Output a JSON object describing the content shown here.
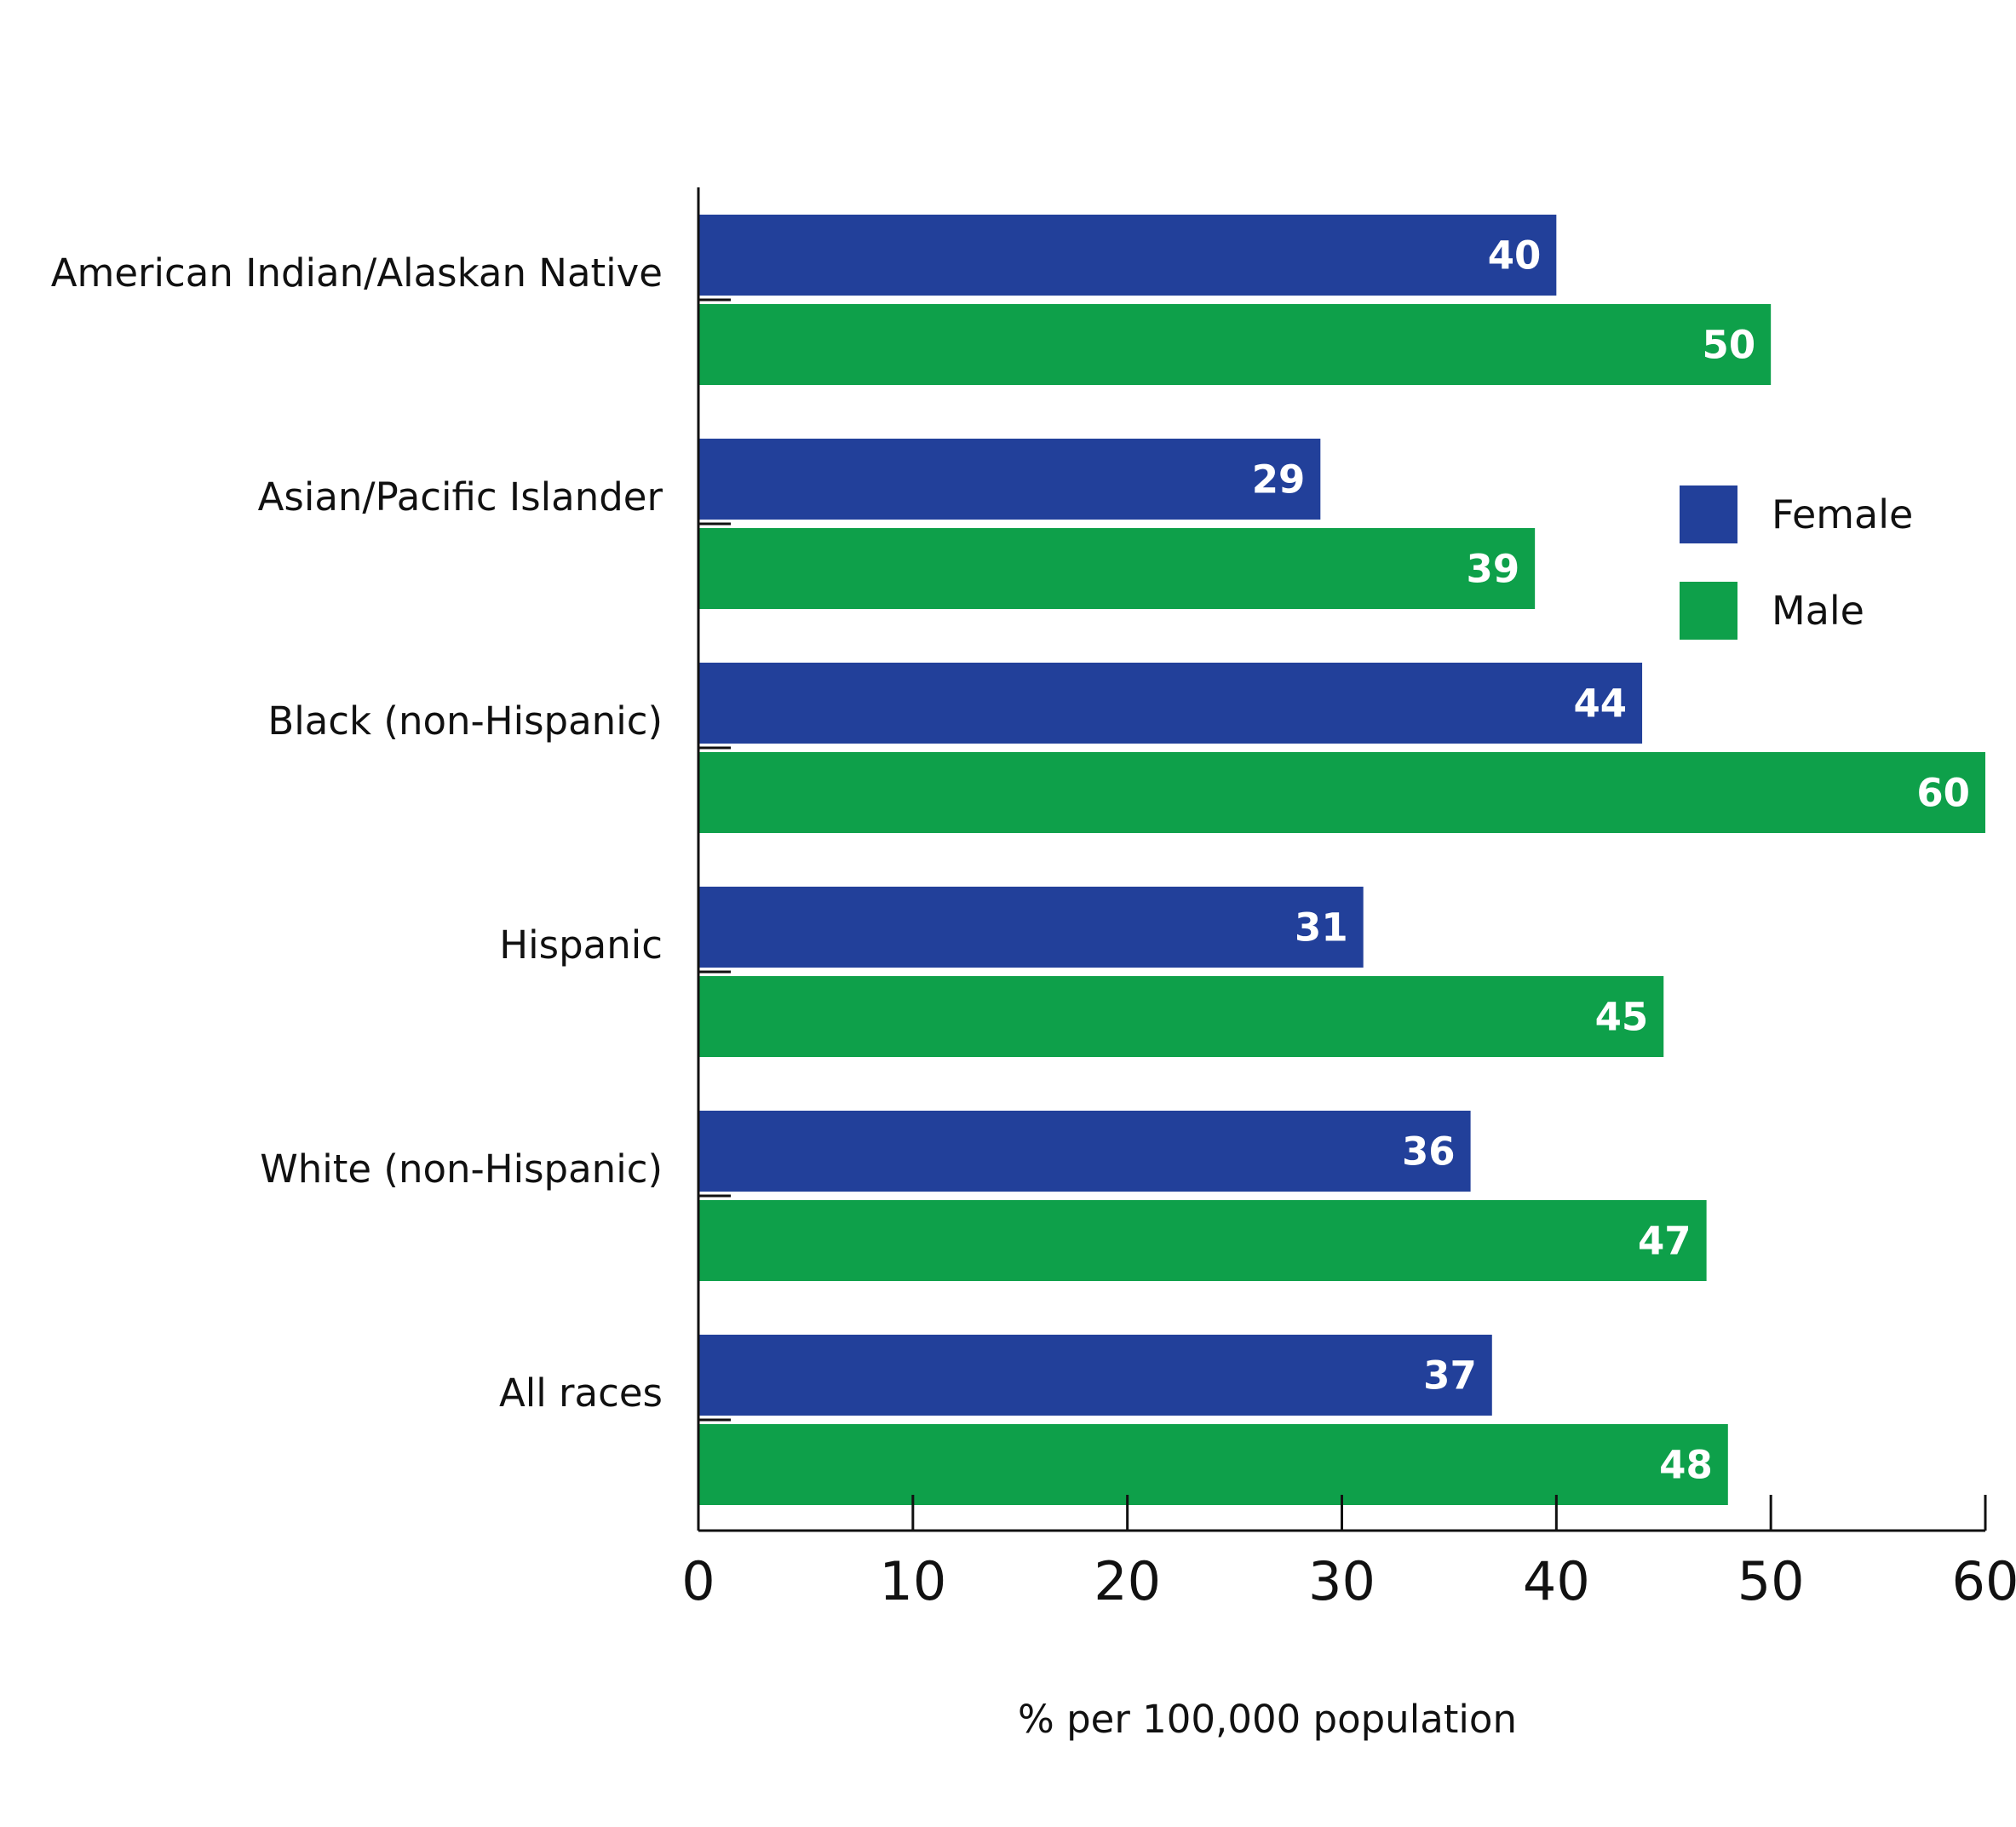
{
  "chart_data": {
    "type": "bar",
    "orientation": "horizontal",
    "categories": [
      "American Indian/Alaskan Native",
      "Asian/Pacific Islander",
      "Black (non-Hispanic)",
      "Hispanic",
      "White (non-Hispanic)",
      "All races"
    ],
    "series": [
      {
        "name": "Female",
        "color": "#22409a",
        "values": [
          40,
          29,
          44,
          31,
          36,
          37
        ]
      },
      {
        "name": "Male",
        "color": "#0ea04a",
        "values": [
          50,
          39,
          60,
          45,
          47,
          48
        ]
      }
    ],
    "xlabel": "% per 100,000 population",
    "ylabel": "",
    "xlim": [
      0,
      60
    ],
    "xticks": [
      0,
      10,
      20,
      30,
      40,
      50,
      60
    ],
    "grid": false,
    "data_labels": true,
    "legend": {
      "position": "right",
      "entries": [
        "Female",
        "Male"
      ]
    }
  }
}
